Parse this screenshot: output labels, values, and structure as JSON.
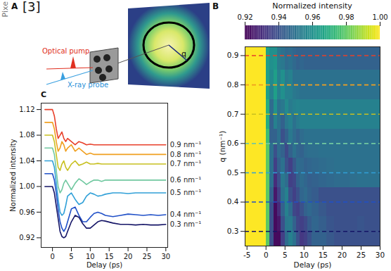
{
  "side_text": "Pixe",
  "schematic": {
    "panel": "A",
    "reference": "[3]",
    "pump_label": "Optical pump",
    "probe_label": "X-ray probe",
    "vector_label": "q"
  },
  "chart_data": [
    {
      "type": "line",
      "panel": "C",
      "xlabel": "Delay (ps)",
      "ylabel": "Normalized intensity",
      "xlim": [
        -3,
        30.5
      ],
      "xticks": [
        0,
        5,
        10,
        15,
        20,
        25,
        30
      ],
      "ylim": [
        0.905,
        1.13
      ],
      "yticks": [
        0.92,
        0.96,
        {
          "value": 1,
          "label": "1.00"
        },
        1.04,
        1.08,
        1.12
      ],
      "x": [
        -2,
        -1,
        0,
        0.5,
        1,
        1.5,
        2,
        2.5,
        3,
        3.5,
        4,
        5,
        6,
        7,
        8,
        9,
        10,
        11,
        12,
        13,
        14,
        16,
        18,
        20,
        22,
        24,
        26,
        28,
        30
      ],
      "series": [
        {
          "name": "0.9 nm⁻¹",
          "color": "#e8402a",
          "values": [
            1.12,
            1.12,
            1.12,
            1.11,
            1.09,
            1.075,
            1.08,
            1.085,
            1.075,
            1.07,
            1.075,
            1.07,
            1.065,
            1.07,
            1.068,
            1.065,
            1.066,
            1.065,
            1.065,
            1.065,
            1.065,
            1.065,
            1.065,
            1.065,
            1.065,
            1.065,
            1.065,
            1.065,
            1.065
          ]
        },
        {
          "name": "0.8 nm⁻¹",
          "color": "#f0a020",
          "values": [
            1.1,
            1.1,
            1.1,
            1.09,
            1.07,
            1.055,
            1.06,
            1.07,
            1.065,
            1.055,
            1.06,
            1.065,
            1.055,
            1.06,
            1.055,
            1.05,
            1.052,
            1.05,
            1.05,
            1.05,
            1.05,
            1.05,
            1.05,
            1.05,
            1.05,
            1.05,
            1.05,
            1.05,
            1.05
          ]
        },
        {
          "name": "0.7 nm⁻¹",
          "color": "#c8c020",
          "values": [
            1.08,
            1.08,
            1.08,
            1.07,
            1.05,
            1.03,
            1.025,
            1.035,
            1.04,
            1.03,
            1.025,
            1.035,
            1.04,
            1.033,
            1.035,
            1.038,
            1.035,
            1.035,
            1.036,
            1.035,
            1.035,
            1.035,
            1.035,
            1.035,
            1.035,
            1.035,
            1.035,
            1.035,
            1.035
          ]
        },
        {
          "name": "0.6 nm⁻¹",
          "color": "#70c8a0",
          "values": [
            1.06,
            1.06,
            1.06,
            1.05,
            1.025,
            1.0,
            0.99,
            0.995,
            1.005,
            1.01,
            1.005,
            0.995,
            1.005,
            1.012,
            1.008,
            1.003,
            1.007,
            1.01,
            1.01,
            1.008,
            1.01,
            1.01,
            1.01,
            1.01,
            1.01,
            1.01,
            1.01,
            1.01,
            1.01
          ]
        },
        {
          "name": "0.5 nm⁻¹",
          "color": "#30a0d8",
          "values": [
            1.04,
            1.04,
            1.04,
            1.03,
            1.005,
            0.98,
            0.96,
            0.955,
            0.958,
            0.97,
            0.985,
            0.99,
            0.98,
            0.972,
            0.975,
            0.985,
            0.99,
            0.988,
            0.985,
            0.986,
            0.988,
            0.99,
            0.99,
            0.989,
            0.99,
            0.99,
            0.99,
            0.99,
            0.99
          ]
        },
        {
          "name": "0.4 nm⁻¹",
          "color": "#2050c8",
          "values": [
            1.02,
            1.02,
            1.02,
            1.01,
            0.99,
            0.965,
            0.945,
            0.935,
            0.93,
            0.935,
            0.945,
            0.965,
            0.968,
            0.955,
            0.945,
            0.945,
            0.952,
            0.958,
            0.96,
            0.958,
            0.955,
            0.953,
            0.955,
            0.957,
            0.956,
            0.955,
            0.956,
            0.955,
            0.956
          ]
        },
        {
          "name": "0.3 nm⁻¹",
          "color": "#141466",
          "values": [
            1.0,
            1.0,
            1.0,
            0.99,
            0.97,
            0.95,
            0.93,
            0.922,
            0.92,
            0.922,
            0.93,
            0.945,
            0.955,
            0.952,
            0.942,
            0.935,
            0.935,
            0.94,
            0.945,
            0.947,
            0.946,
            0.943,
            0.941,
            0.941,
            0.94,
            0.941,
            0.94,
            0.94,
            0.941
          ]
        }
      ]
    },
    {
      "type": "heatmap",
      "panel": "B",
      "xlabel": "Delay (ps)",
      "ylabel": "q (nm⁻¹)",
      "xlim": [
        -5.5,
        30
      ],
      "xticks": [
        -5,
        0,
        5,
        10,
        15,
        20,
        25,
        30
      ],
      "ylim": [
        0.25,
        0.93
      ],
      "yticks": [
        0.3,
        0.4,
        0.5,
        0.6,
        0.7,
        0.8,
        0.9
      ],
      "colorbar": {
        "title": "Normalized intensity",
        "range": [
          0.92,
          1.0
        ],
        "ticks": [
          0.92,
          0.94,
          0.96,
          0.98,
          {
            "value": 1,
            "label": "1.00"
          }
        ]
      },
      "x_edges": [
        -5.5,
        0,
        1,
        2,
        3,
        4,
        5,
        6,
        7,
        8,
        9,
        10,
        11,
        12,
        14,
        16,
        18,
        20,
        22,
        24,
        26,
        28,
        30
      ],
      "q_edges": [
        0.25,
        0.3,
        0.35,
        0.4,
        0.45,
        0.5,
        0.55,
        0.6,
        0.65,
        0.7,
        0.75,
        0.8,
        0.85,
        0.9,
        0.95
      ],
      "intensity": [
        [
          1.0,
          0.98,
          0.94,
          0.922,
          0.922,
          0.935,
          0.948,
          0.955,
          0.95,
          0.94,
          0.933,
          0.935,
          0.94,
          0.945,
          0.945,
          0.942,
          0.94,
          0.94,
          0.94,
          0.94,
          0.94,
          0.94
        ],
        [
          1.0,
          0.98,
          0.94,
          0.922,
          0.925,
          0.94,
          0.952,
          0.953,
          0.945,
          0.937,
          0.935,
          0.938,
          0.943,
          0.946,
          0.944,
          0.941,
          0.94,
          0.94,
          0.94,
          0.941,
          0.94,
          0.94
        ],
        [
          1.0,
          0.98,
          0.94,
          0.922,
          0.93,
          0.945,
          0.955,
          0.948,
          0.937,
          0.935,
          0.94,
          0.945,
          0.947,
          0.945,
          0.942,
          0.94,
          0.94,
          0.94,
          0.94,
          0.94,
          0.94,
          0.94
        ],
        [
          1.0,
          0.98,
          0.945,
          0.925,
          0.935,
          0.95,
          0.955,
          0.94,
          0.935,
          0.94,
          0.946,
          0.948,
          0.945,
          0.943,
          0.94,
          0.94,
          0.94,
          0.94,
          0.94,
          0.94,
          0.94,
          0.94
        ],
        [
          1.0,
          0.98,
          0.95,
          0.93,
          0.94,
          0.952,
          0.948,
          0.935,
          0.937,
          0.945,
          0.948,
          0.946,
          0.944,
          0.945,
          0.946,
          0.947,
          0.948,
          0.948,
          0.949,
          0.95,
          0.95,
          0.95
        ],
        [
          1.0,
          0.98,
          0.95,
          0.935,
          0.945,
          0.95,
          0.94,
          0.935,
          0.942,
          0.948,
          0.947,
          0.945,
          0.946,
          0.947,
          0.948,
          0.949,
          0.95,
          0.95,
          0.95,
          0.95,
          0.95,
          0.95
        ],
        [
          1.0,
          0.98,
          0.95,
          0.94,
          0.948,
          0.945,
          0.938,
          0.945,
          0.95,
          0.946,
          0.945,
          0.948,
          0.949,
          0.949,
          0.95,
          0.95,
          0.95,
          0.95,
          0.95,
          0.95,
          0.95,
          0.95
        ],
        [
          1.0,
          0.975,
          0.945,
          0.945,
          0.95,
          0.94,
          0.945,
          0.952,
          0.948,
          0.945,
          0.948,
          0.95,
          0.95,
          0.95,
          0.95,
          0.95,
          0.95,
          0.95,
          0.95,
          0.95,
          0.95,
          0.95
        ],
        [
          1.0,
          0.97,
          0.945,
          0.955,
          0.95,
          0.945,
          0.952,
          0.955,
          0.95,
          0.953,
          0.955,
          0.955,
          0.955,
          0.955,
          0.955,
          0.955,
          0.955,
          0.955,
          0.955,
          0.955,
          0.955,
          0.955
        ],
        [
          1.0,
          0.97,
          0.948,
          0.96,
          0.95,
          0.952,
          0.958,
          0.953,
          0.955,
          0.956,
          0.955,
          0.955,
          0.955,
          0.955,
          0.955,
          0.955,
          0.955,
          0.955,
          0.955,
          0.955,
          0.955,
          0.955
        ],
        [
          1.0,
          0.965,
          0.955,
          0.965,
          0.955,
          0.96,
          0.955,
          0.955,
          0.952,
          0.951,
          0.95,
          0.95,
          0.95,
          0.95,
          0.95,
          0.95,
          0.95,
          0.95,
          0.95,
          0.95,
          0.95,
          0.95
        ],
        [
          1.0,
          0.965,
          0.958,
          0.965,
          0.955,
          0.96,
          0.953,
          0.955,
          0.95,
          0.95,
          0.95,
          0.95,
          0.95,
          0.95,
          0.95,
          0.95,
          0.95,
          0.95,
          0.95,
          0.95,
          0.95,
          0.95
        ],
        [
          1.0,
          0.965,
          0.96,
          0.962,
          0.953,
          0.952,
          0.948,
          0.95,
          0.947,
          0.945,
          0.946,
          0.945,
          0.945,
          0.945,
          0.945,
          0.945,
          0.945,
          0.945,
          0.945,
          0.945,
          0.945,
          0.945
        ],
        [
          1.0,
          0.965,
          0.96,
          0.96,
          0.952,
          0.95,
          0.947,
          0.948,
          0.946,
          0.945,
          0.945,
          0.945,
          0.945,
          0.945,
          0.945,
          0.945,
          0.945,
          0.945,
          0.945,
          0.945,
          0.945,
          0.945
        ]
      ],
      "line_style": "dashed",
      "lines": [
        {
          "q": 0.3,
          "color": "#141466"
        },
        {
          "q": 0.4,
          "color": "#2050c8"
        },
        {
          "q": 0.5,
          "color": "#30a0d8"
        },
        {
          "q": 0.6,
          "color": "#70c8a0"
        },
        {
          "q": 0.7,
          "color": "#c8c020"
        },
        {
          "q": 0.8,
          "color": "#f0a020"
        },
        {
          "q": 0.9,
          "color": "#e8402a"
        }
      ]
    }
  ]
}
